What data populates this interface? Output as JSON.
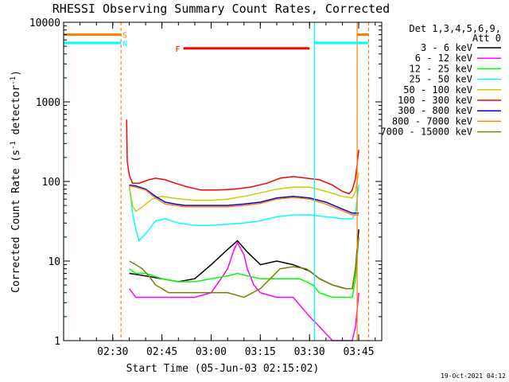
{
  "chart_data": {
    "type": "line",
    "title": "RHESSI Observing Summary Count Rates, Corrected",
    "xlabel": "Start Time (05-Jun-03 02:15:02)",
    "ylabel": "Corrected Count Rate (s",
    "ylabel_sup1": "-1",
    "ylabel_mid": " detector",
    "ylabel_sup2": "-1",
    "ylabel_end": ")",
    "yscale": "log",
    "ylim": [
      1,
      10000
    ],
    "xlim_minutes": [
      0,
      97
    ],
    "xtick_labels": [
      "02:30",
      "02:45",
      "03:00",
      "03:15",
      "03:30",
      "03:45"
    ],
    "xtick_minutes": [
      14.97,
      29.97,
      44.97,
      59.97,
      74.97,
      89.97
    ],
    "ytick_labels": [
      "1",
      "10",
      "100",
      "1000",
      "10000"
    ],
    "ytick_values": [
      1,
      10,
      100,
      1000,
      10000
    ],
    "legend_header_line1": "Det 1,3,4,5,6,9,",
    "legend_header_line2": "Att 0",
    "legend_position": "right",
    "timestamp": "19-Oct-2021 04:12",
    "flags": [
      {
        "label": "S",
        "color": "#ff8000",
        "value": 7000,
        "segments": [
          [
            0,
            17.5
          ],
          [
            89.5,
            93
          ]
        ]
      },
      {
        "label": "N",
        "color": "#00ffff",
        "value": 5500,
        "segments": [
          [
            0,
            17.5
          ],
          [
            76.5,
            93
          ]
        ]
      },
      {
        "label": "F",
        "color": "#ff0000",
        "value": 4700,
        "segments": [
          [
            36.5,
            75
          ]
        ]
      }
    ],
    "vlines": [
      {
        "x": 0,
        "color": "#00ffff",
        "style": "solid"
      },
      {
        "x": 17.5,
        "color": "#ff8000",
        "style": "dashed"
      },
      {
        "x": 76.5,
        "color": "#00ffff",
        "style": "solid"
      },
      {
        "x": 89.5,
        "color": "#ff8000",
        "style": "solid"
      },
      {
        "x": 93,
        "color": "#ff8000",
        "style": "dashed"
      }
    ],
    "series": [
      {
        "name": "3 - 6 keV",
        "color": "#000000",
        "x": [
          20,
          25,
          30,
          35,
          40,
          45,
          50,
          53,
          56,
          60,
          65,
          70,
          75,
          78,
          82,
          86,
          88,
          89,
          90
        ],
        "y": [
          7,
          6.5,
          6,
          5.5,
          6,
          9,
          14,
          18,
          13,
          9,
          10,
          9,
          7.5,
          6,
          5,
          4.5,
          4.5,
          8,
          25
        ]
      },
      {
        "name": "6 - 12 keV",
        "color": "#ff00ff",
        "x": [
          20,
          22,
          25,
          30,
          35,
          40,
          45,
          48,
          50,
          52,
          53,
          55,
          56,
          58,
          60,
          65,
          70,
          75,
          78,
          82,
          86,
          88,
          89,
          90
        ],
        "y": [
          4.5,
          3.5,
          3.5,
          3.5,
          3.5,
          3.5,
          4,
          6,
          8,
          14,
          17,
          12,
          8,
          5,
          4,
          3.5,
          3.5,
          2,
          1.5,
          1,
          1,
          1,
          1.5,
          4
        ]
      },
      {
        "name": "12 - 25 keV",
        "color": "#00ff00",
        "x": [
          20,
          22,
          25,
          30,
          35,
          40,
          45,
          50,
          53,
          56,
          60,
          65,
          70,
          72,
          76,
          78,
          82,
          86,
          88,
          89,
          90
        ],
        "y": [
          8,
          7,
          7,
          6,
          5.5,
          5.5,
          6,
          6.5,
          7,
          6.5,
          6,
          6,
          6,
          6,
          5,
          4,
          3.5,
          3.5,
          3.5,
          6,
          20
        ]
      },
      {
        "name": "25 - 50 keV",
        "color": "#00ffff",
        "x": [
          20,
          21,
          22,
          23,
          25,
          28,
          31,
          35,
          40,
          45,
          50,
          55,
          60,
          65,
          70,
          75,
          80,
          85,
          88,
          89,
          90
        ],
        "y": [
          90,
          40,
          25,
          18,
          22,
          32,
          34,
          30,
          28,
          28,
          29,
          30,
          32,
          36,
          38,
          38,
          36,
          34,
          34,
          40,
          90
        ]
      },
      {
        "name": "50 - 100 keV",
        "color": "#cccc00",
        "x": [
          20,
          21,
          22,
          24,
          27,
          30,
          33,
          36,
          40,
          45,
          50,
          55,
          60,
          65,
          70,
          75,
          80,
          85,
          88,
          89,
          90
        ],
        "y": [
          90,
          50,
          42,
          48,
          60,
          65,
          62,
          60,
          58,
          58,
          60,
          65,
          72,
          80,
          85,
          85,
          75,
          65,
          62,
          75,
          130
        ]
      },
      {
        "name": "100 - 300 keV",
        "color": "#ff0000",
        "x": [
          19.2,
          19.4,
          20,
          21,
          23,
          26,
          28,
          31,
          34,
          38,
          42,
          47,
          52,
          57,
          62,
          66,
          70,
          74,
          78,
          82,
          85,
          87,
          88,
          89,
          90
        ],
        "y": [
          600,
          180,
          120,
          95,
          95,
          105,
          110,
          105,
          95,
          85,
          78,
          78,
          80,
          85,
          95,
          110,
          115,
          110,
          105,
          90,
          75,
          70,
          78,
          110,
          250
        ]
      },
      {
        "name": "300 - 800 keV",
        "color": "#0000ff",
        "x": [
          20,
          22,
          25,
          28,
          31,
          34,
          37,
          40,
          45,
          50,
          55,
          60,
          65,
          70,
          75,
          80,
          85,
          88,
          90
        ],
        "y": [
          90,
          88,
          80,
          65,
          55,
          52,
          50,
          50,
          50,
          50,
          52,
          55,
          62,
          65,
          62,
          55,
          45,
          40,
          40
        ]
      },
      {
        "name": "800 - 7000 keV",
        "color": "#ff8000",
        "x": [
          20,
          22,
          25,
          28,
          31,
          34,
          37,
          40,
          45,
          50,
          55,
          60,
          65,
          70,
          75,
          80,
          85,
          88,
          90
        ],
        "y": [
          88,
          85,
          78,
          62,
          52,
          50,
          48,
          48,
          48,
          48,
          50,
          53,
          60,
          63,
          60,
          52,
          43,
          38,
          38
        ]
      },
      {
        "name": "7000 - 15000 keV",
        "color": "#808000",
        "x": [
          20,
          22,
          24,
          26,
          28,
          30,
          32,
          35,
          40,
          45,
          50,
          55,
          60,
          63,
          66,
          70,
          74,
          78,
          82,
          86,
          88,
          89,
          90
        ],
        "y": [
          10,
          9,
          8,
          6.5,
          5,
          4.5,
          4,
          4,
          4,
          4,
          4,
          3.5,
          4.5,
          6,
          8,
          8.5,
          8,
          6,
          5,
          4.5,
          4.5,
          8,
          20
        ]
      }
    ]
  }
}
